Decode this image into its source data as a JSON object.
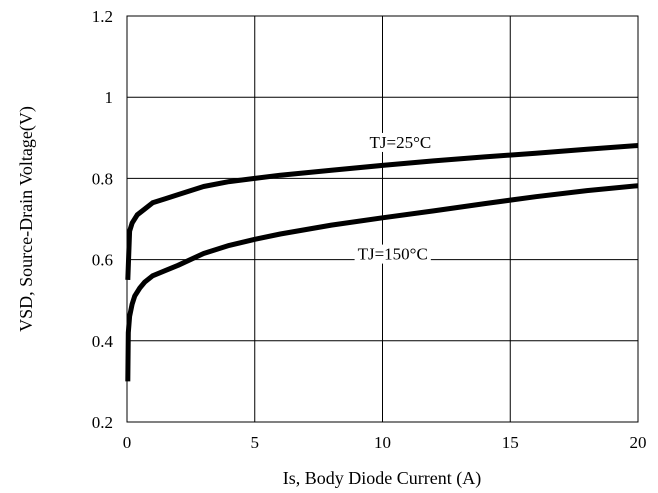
{
  "chart_data": {
    "type": "line",
    "xlabel": "Is, Body Diode Current (A)",
    "ylabel": "VSD, Source-Drain Voltage(V)",
    "xlim": [
      0,
      20
    ],
    "ylim": [
      0.2,
      1.2
    ],
    "x_ticks": [
      "0",
      "5",
      "10",
      "15",
      "20"
    ],
    "y_ticks": [
      "0.2",
      "0.4",
      "0.6",
      "0.8",
      "1",
      "1.2"
    ],
    "grid": true,
    "legend": "none",
    "series": [
      {
        "name": "TJ=25°C",
        "x": [
          0.03,
          0.1,
          0.2,
          0.4,
          0.7,
          1,
          1.5,
          2,
          3,
          4,
          5,
          6,
          8,
          10,
          12,
          14,
          16,
          18,
          20
        ],
        "y": [
          0.55,
          0.67,
          0.69,
          0.71,
          0.725,
          0.74,
          0.75,
          0.76,
          0.78,
          0.792,
          0.8,
          0.808,
          0.82,
          0.832,
          0.843,
          0.853,
          0.862,
          0.872,
          0.881
        ]
      },
      {
        "name": "TJ=150°C",
        "x": [
          0.03,
          0.05,
          0.1,
          0.2,
          0.3,
          0.5,
          0.7,
          1,
          1.5,
          2,
          3,
          4,
          5,
          6,
          8,
          10,
          12,
          14,
          16,
          18,
          20
        ],
        "y": [
          0.3,
          0.42,
          0.46,
          0.49,
          0.51,
          0.53,
          0.545,
          0.56,
          0.573,
          0.586,
          0.615,
          0.635,
          0.65,
          0.663,
          0.685,
          0.703,
          0.72,
          0.738,
          0.755,
          0.77,
          0.782
        ]
      }
    ],
    "annotations": [
      {
        "series": 0,
        "label": "TJ=25°C",
        "at_x": 10.7,
        "at_y": 0.875
      },
      {
        "series": 1,
        "label": "TJ=150°C",
        "at_x": 10.4,
        "at_y": 0.6
      }
    ]
  }
}
